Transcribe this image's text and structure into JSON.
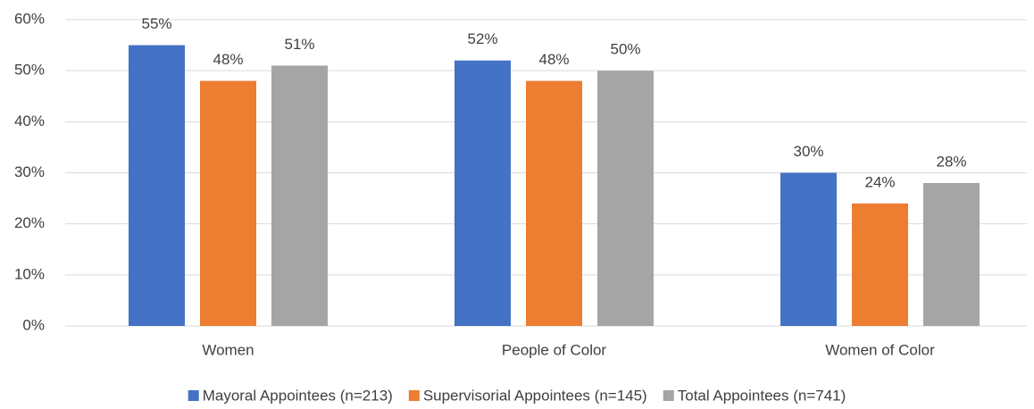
{
  "chart_data": {
    "type": "bar",
    "categories": [
      "Women",
      "People of Color",
      "Women of Color"
    ],
    "series": [
      {
        "name": "Mayoral Appointees (n=213)",
        "color": "#4472c4",
        "values": [
          55,
          52,
          30
        ],
        "value_labels": [
          "55%",
          "52%",
          "30%"
        ]
      },
      {
        "name": "Supervisorial Appointees (n=145)",
        "color": "#ed7d31",
        "values": [
          48,
          48,
          24
        ],
        "value_labels": [
          "48%",
          "48%",
          "24%"
        ]
      },
      {
        "name": "Total Appointees (n=741)",
        "color": "#a5a5a5",
        "values": [
          51,
          50,
          28
        ],
        "value_labels": [
          "51%",
          "50%",
          "28%"
        ]
      }
    ],
    "ylim": [
      0,
      60
    ],
    "yticks": [
      {
        "value": 0,
        "label": "0%"
      },
      {
        "value": 10,
        "label": "10%"
      },
      {
        "value": 20,
        "label": "20%"
      },
      {
        "value": 30,
        "label": "30%"
      },
      {
        "value": 40,
        "label": "40%"
      },
      {
        "value": 50,
        "label": "50%"
      },
      {
        "value": 60,
        "label": "60%"
      }
    ],
    "grid": true,
    "legend": "bottom"
  }
}
